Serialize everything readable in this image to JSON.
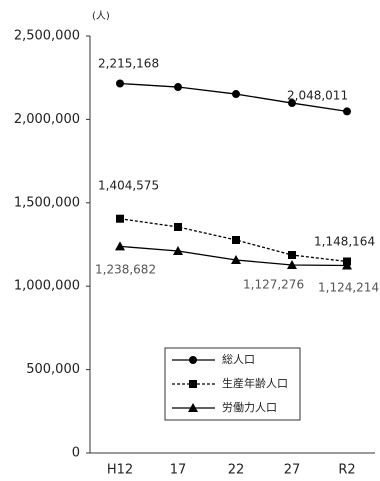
{
  "chart_data": {
    "type": "line",
    "y_unit": "(人)",
    "categories": [
      "H12",
      "17",
      "22",
      "27",
      "R2"
    ],
    "ylim": [
      0,
      2500000
    ],
    "yticks": [
      0,
      {
        "value": 500000,
        "label": "500,000"
      },
      {
        "value": 1000000,
        "label": "1,000,000"
      },
      {
        "value": 1500000,
        "label": "1,500,000"
      },
      {
        "value": 2000000,
        "label": "2,000,000"
      },
      {
        "value": 2500000,
        "label": "2,500,000"
      }
    ],
    "grid": false,
    "series": [
      {
        "name": "総人口",
        "color": "#000000",
        "marker": "circle",
        "dash": false,
        "values": [
          2215168,
          2194000,
          2152000,
          2098000,
          2048011
        ],
        "value_labels": [
          "2,215,168",
          null,
          null,
          null,
          "2,048,011"
        ]
      },
      {
        "name": "生産年齢人口",
        "color": "#000000",
        "marker": "square",
        "dash": true,
        "values": [
          1404575,
          1355000,
          1277000,
          1187000,
          1148164
        ],
        "value_labels": [
          "1,404,575",
          null,
          null,
          null,
          "1,148,164"
        ]
      },
      {
        "name": "労働力人口",
        "color": "#000000",
        "marker": "triangle",
        "dash": false,
        "values": [
          1238682,
          1211000,
          1157000,
          1127276,
          1124214
        ],
        "value_labels": [
          "1,238,682",
          null,
          null,
          "1,127,276",
          "1,124,214"
        ]
      }
    ]
  }
}
